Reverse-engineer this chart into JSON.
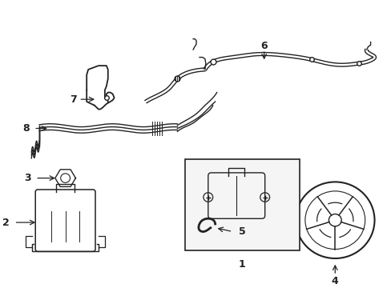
{
  "background_color": "#ffffff",
  "line_color": "#222222",
  "box_fill": "#f5f5f5",
  "fig_width": 4.89,
  "fig_height": 3.6,
  "dpi": 100
}
